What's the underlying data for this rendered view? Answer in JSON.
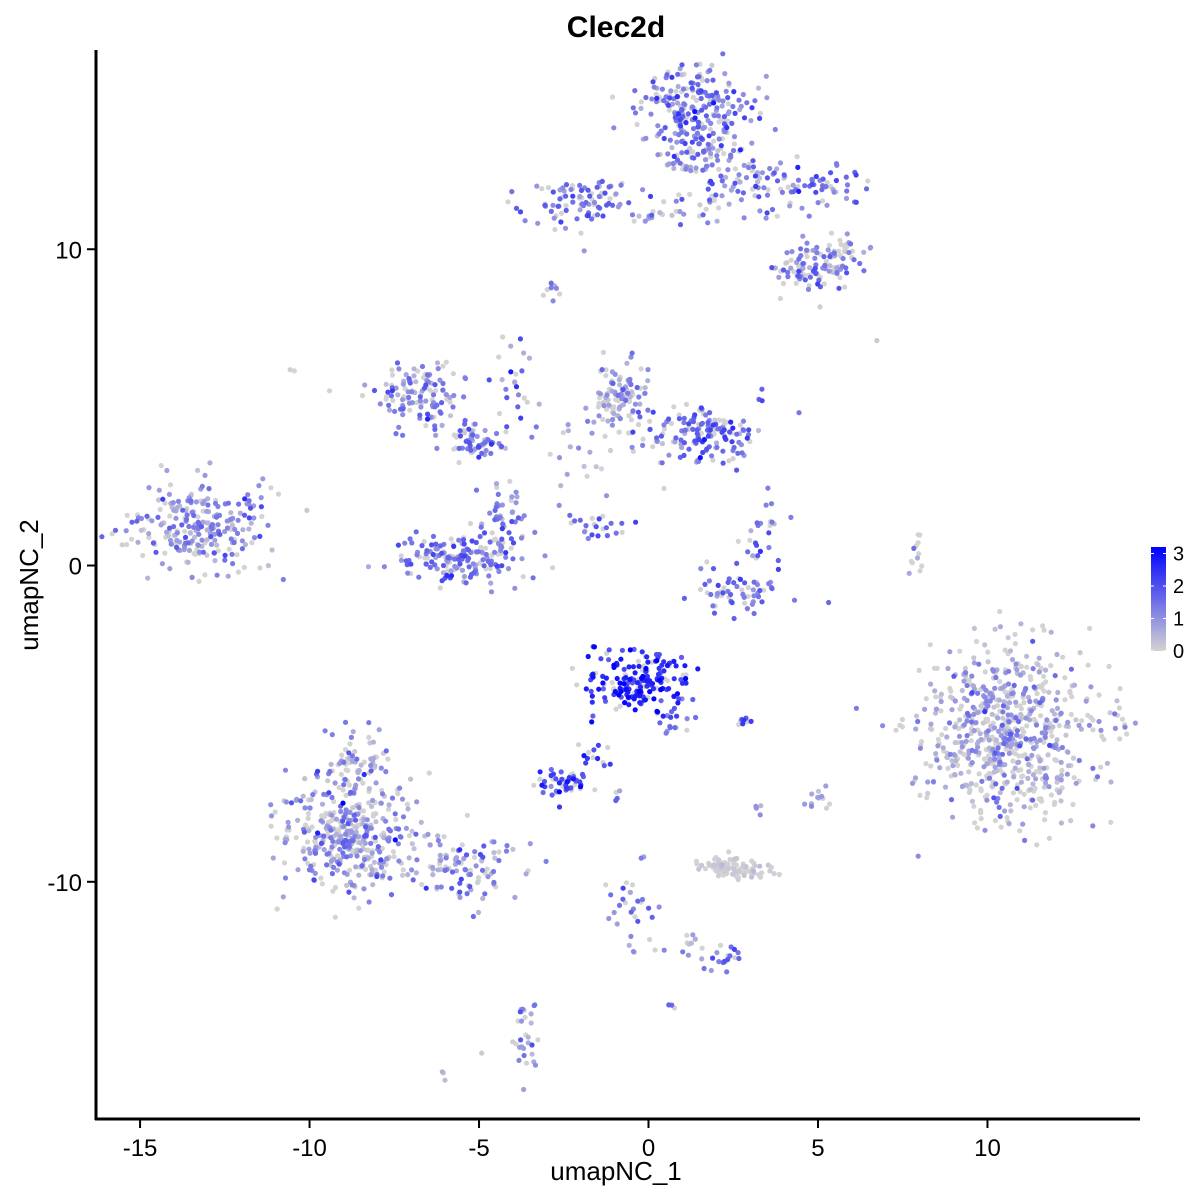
{
  "chart_data": {
    "type": "scatter",
    "title": "Clec2d",
    "xlabel": "umapNC_1",
    "ylabel": "umapNC_2",
    "xlim": [
      -16.3,
      14.5
    ],
    "ylim": [
      -17.5,
      16.3
    ],
    "x_ticks": [
      -15,
      -10,
      -5,
      0,
      5,
      10
    ],
    "x_tick_labels": [
      "-15",
      "-10",
      "-5",
      "0",
      "5",
      "10"
    ],
    "y_ticks": [
      -10,
      0,
      10
    ],
    "y_tick_labels": [
      "-10",
      "0",
      "10"
    ],
    "grid": false,
    "color_scale": {
      "low_color": "#d3d3d3",
      "high_color": "#0000ff",
      "min": 0,
      "max": 3.2,
      "legend_ticks": [
        0,
        1,
        2,
        3
      ],
      "legend_tick_labels": [
        "0",
        "1",
        "2",
        "3"
      ],
      "legend_position": "right"
    },
    "clusters": [
      {
        "id": "c01",
        "cx": -13.3,
        "cy": 1.2,
        "sx": 1.0,
        "sy": 0.7,
        "n": 240,
        "expr": 1.1,
        "expr_sd": 0.55
      },
      {
        "id": "c02",
        "cx": -11.8,
        "cy": 2.3,
        "sx": 0.3,
        "sy": 0.3,
        "n": 8,
        "expr": 0.9,
        "expr_sd": 0.4
      },
      {
        "id": "c03",
        "cx": -10.5,
        "cy": 6.1,
        "sx": 0.05,
        "sy": 0.05,
        "n": 2,
        "expr": 0.1,
        "expr_sd": 0.1
      },
      {
        "id": "c04",
        "cx": -6.6,
        "cy": 5.3,
        "sx": 0.75,
        "sy": 0.55,
        "n": 130,
        "expr": 1.2,
        "expr_sd": 0.5
      },
      {
        "id": "c05",
        "cx": -5.0,
        "cy": 3.9,
        "sx": 0.45,
        "sy": 0.35,
        "n": 60,
        "expr": 1.3,
        "expr_sd": 0.5
      },
      {
        "id": "c06",
        "cx": -3.8,
        "cy": 5.8,
        "sx": 0.3,
        "sy": 0.9,
        "n": 25,
        "expr": 1.4,
        "expr_sd": 0.6
      },
      {
        "id": "c07",
        "cx": -5.6,
        "cy": 0.2,
        "sx": 0.95,
        "sy": 0.4,
        "n": 160,
        "expr": 1.4,
        "expr_sd": 0.45
      },
      {
        "id": "c08",
        "cx": -4.3,
        "cy": 1.2,
        "sx": 0.35,
        "sy": 0.7,
        "n": 55,
        "expr": 1.3,
        "expr_sd": 0.5
      },
      {
        "id": "c09",
        "cx": -2.8,
        "cy": 8.7,
        "sx": 0.15,
        "sy": 0.12,
        "n": 8,
        "expr": 1.2,
        "expr_sd": 0.4
      },
      {
        "id": "c10",
        "cx": -1.4,
        "cy": 1.2,
        "sx": 0.45,
        "sy": 0.25,
        "n": 22,
        "expr": 1.7,
        "expr_sd": 0.5
      },
      {
        "id": "c11",
        "cx": -0.9,
        "cy": 5.3,
        "sx": 0.45,
        "sy": 0.55,
        "n": 110,
        "expr": 0.9,
        "expr_sd": 0.5
      },
      {
        "id": "c12",
        "cx": 1.6,
        "cy": 4.2,
        "sx": 0.9,
        "sy": 0.45,
        "n": 150,
        "expr": 1.5,
        "expr_sd": 0.55
      },
      {
        "id": "c13",
        "cx": -2.2,
        "cy": 3.0,
        "sx": 0.4,
        "sy": 0.9,
        "n": 18,
        "expr": 0.5,
        "expr_sd": 0.5
      },
      {
        "id": "c14",
        "cx": 1.4,
        "cy": 14.5,
        "sx": 0.8,
        "sy": 0.65,
        "n": 220,
        "expr": 1.3,
        "expr_sd": 0.55
      },
      {
        "id": "c15",
        "cx": 1.5,
        "cy": 13.0,
        "sx": 0.5,
        "sy": 0.45,
        "n": 60,
        "expr": 1.0,
        "expr_sd": 0.5
      },
      {
        "id": "c16",
        "cx": 3.0,
        "cy": 12.1,
        "sx": 1.1,
        "sy": 0.55,
        "n": 85,
        "expr": 1.2,
        "expr_sd": 0.55
      },
      {
        "id": "c17",
        "cx": 5.1,
        "cy": 12.0,
        "sx": 0.65,
        "sy": 0.3,
        "n": 40,
        "expr": 1.3,
        "expr_sd": 0.5
      },
      {
        "id": "c18",
        "cx": -2.1,
        "cy": 11.5,
        "sx": 0.85,
        "sy": 0.4,
        "n": 90,
        "expr": 1.4,
        "expr_sd": 0.5
      },
      {
        "id": "c19",
        "cx": 0.5,
        "cy": 11.2,
        "sx": 0.7,
        "sy": 0.25,
        "n": 25,
        "expr": 1.2,
        "expr_sd": 0.6
      },
      {
        "id": "c20",
        "cx": 4.6,
        "cy": 9.3,
        "sx": 0.5,
        "sy": 0.45,
        "n": 65,
        "expr": 1.3,
        "expr_sd": 0.55
      },
      {
        "id": "c21",
        "cx": 5.7,
        "cy": 9.7,
        "sx": 0.45,
        "sy": 0.35,
        "n": 55,
        "expr": 1.1,
        "expr_sd": 0.55
      },
      {
        "id": "c22",
        "cx": 2.7,
        "cy": -0.7,
        "sx": 0.7,
        "sy": 0.35,
        "n": 60,
        "expr": 1.5,
        "expr_sd": 0.5
      },
      {
        "id": "c23",
        "cx": 3.3,
        "cy": 0.7,
        "sx": 0.3,
        "sy": 0.6,
        "n": 25,
        "expr": 1.4,
        "expr_sd": 0.5
      },
      {
        "id": "c24",
        "cx": 7.9,
        "cy": 0.4,
        "sx": 0.12,
        "sy": 0.5,
        "n": 12,
        "expr": 0.8,
        "expr_sd": 0.5
      },
      {
        "id": "c25",
        "cx": 10.6,
        "cy": -5.2,
        "sx": 1.3,
        "sy": 1.4,
        "n": 700,
        "expr": 0.55,
        "expr_sd": 0.6
      },
      {
        "id": "c26",
        "cx": -0.4,
        "cy": -3.6,
        "sx": 0.65,
        "sy": 0.5,
        "n": 180,
        "expr": 2.6,
        "expr_sd": 0.5
      },
      {
        "id": "c27",
        "cx": 0.8,
        "cy": -4.6,
        "sx": 0.35,
        "sy": 0.4,
        "n": 25,
        "expr": 1.6,
        "expr_sd": 0.5
      },
      {
        "id": "c28",
        "cx": -2.5,
        "cy": -6.9,
        "sx": 0.35,
        "sy": 0.25,
        "n": 50,
        "expr": 2.2,
        "expr_sd": 0.5
      },
      {
        "id": "c29",
        "cx": -1.6,
        "cy": -6.2,
        "sx": 0.3,
        "sy": 0.45,
        "n": 15,
        "expr": 1.8,
        "expr_sd": 0.5
      },
      {
        "id": "c30",
        "cx": -8.9,
        "cy": -8.6,
        "sx": 1.05,
        "sy": 0.85,
        "n": 380,
        "expr": 0.9,
        "expr_sd": 0.6
      },
      {
        "id": "c31",
        "cx": -8.6,
        "cy": -6.3,
        "sx": 0.5,
        "sy": 0.55,
        "n": 70,
        "expr": 0.7,
        "expr_sd": 0.55
      },
      {
        "id": "c32",
        "cx": -5.6,
        "cy": -9.5,
        "sx": 0.9,
        "sy": 0.55,
        "n": 110,
        "expr": 0.9,
        "expr_sd": 0.6
      },
      {
        "id": "c33",
        "cx": 2.5,
        "cy": -9.6,
        "sx": 0.5,
        "sy": 0.18,
        "n": 90,
        "expr": 0.08,
        "expr_sd": 0.15
      },
      {
        "id": "c34",
        "cx": -0.5,
        "cy": -10.9,
        "sx": 0.3,
        "sy": 0.8,
        "n": 30,
        "expr": 1.2,
        "expr_sd": 0.6
      },
      {
        "id": "c35",
        "cx": 2.3,
        "cy": -12.5,
        "sx": 0.25,
        "sy": 0.2,
        "n": 18,
        "expr": 1.4,
        "expr_sd": 0.5
      },
      {
        "id": "c36",
        "cx": 0.8,
        "cy": -12.0,
        "sx": 0.7,
        "sy": 0.25,
        "n": 12,
        "expr": 0.6,
        "expr_sd": 0.5
      },
      {
        "id": "c37",
        "cx": -3.6,
        "cy": -14.8,
        "sx": 0.2,
        "sy": 0.7,
        "n": 30,
        "expr": 1.0,
        "expr_sd": 0.6
      },
      {
        "id": "c38",
        "cx": -6.1,
        "cy": -16.2,
        "sx": 0.1,
        "sy": 0.1,
        "n": 3,
        "expr": 0.3,
        "expr_sd": 0.2
      },
      {
        "id": "c39",
        "cx": 2.9,
        "cy": -5.0,
        "sx": 0.15,
        "sy": 0.1,
        "n": 8,
        "expr": 2.0,
        "expr_sd": 0.4
      },
      {
        "id": "c40",
        "cx": 5.0,
        "cy": -7.4,
        "sx": 0.2,
        "sy": 0.2,
        "n": 12,
        "expr": 0.7,
        "expr_sd": 0.5
      },
      {
        "id": "c41",
        "cx": 3.3,
        "cy": -7.7,
        "sx": 0.1,
        "sy": 0.1,
        "n": 4,
        "expr": 0.8,
        "expr_sd": 0.4
      },
      {
        "id": "c42",
        "cx": -0.9,
        "cy": -7.3,
        "sx": 0.1,
        "sy": 0.1,
        "n": 4,
        "expr": 1.8,
        "expr_sd": 0.4
      },
      {
        "id": "c43",
        "cx": 0.6,
        "cy": -13.9,
        "sx": 0.08,
        "sy": 0.08,
        "n": 3,
        "expr": 1.6,
        "expr_sd": 0.3
      },
      {
        "id": "c44",
        "cx": 6.8,
        "cy": 7.1,
        "sx": 0.05,
        "sy": 0.05,
        "n": 1,
        "expr": 0.1,
        "expr_sd": 0.1
      },
      {
        "id": "c45",
        "cx": 5.1,
        "cy": 8.2,
        "sx": 0.05,
        "sy": 0.05,
        "n": 1,
        "expr": 0.1,
        "expr_sd": 0.1
      },
      {
        "id": "c46",
        "cx": -4.9,
        "cy": -15.5,
        "sx": 0.05,
        "sy": 0.05,
        "n": 1,
        "expr": 0.1,
        "expr_sd": 0.1
      }
    ]
  }
}
